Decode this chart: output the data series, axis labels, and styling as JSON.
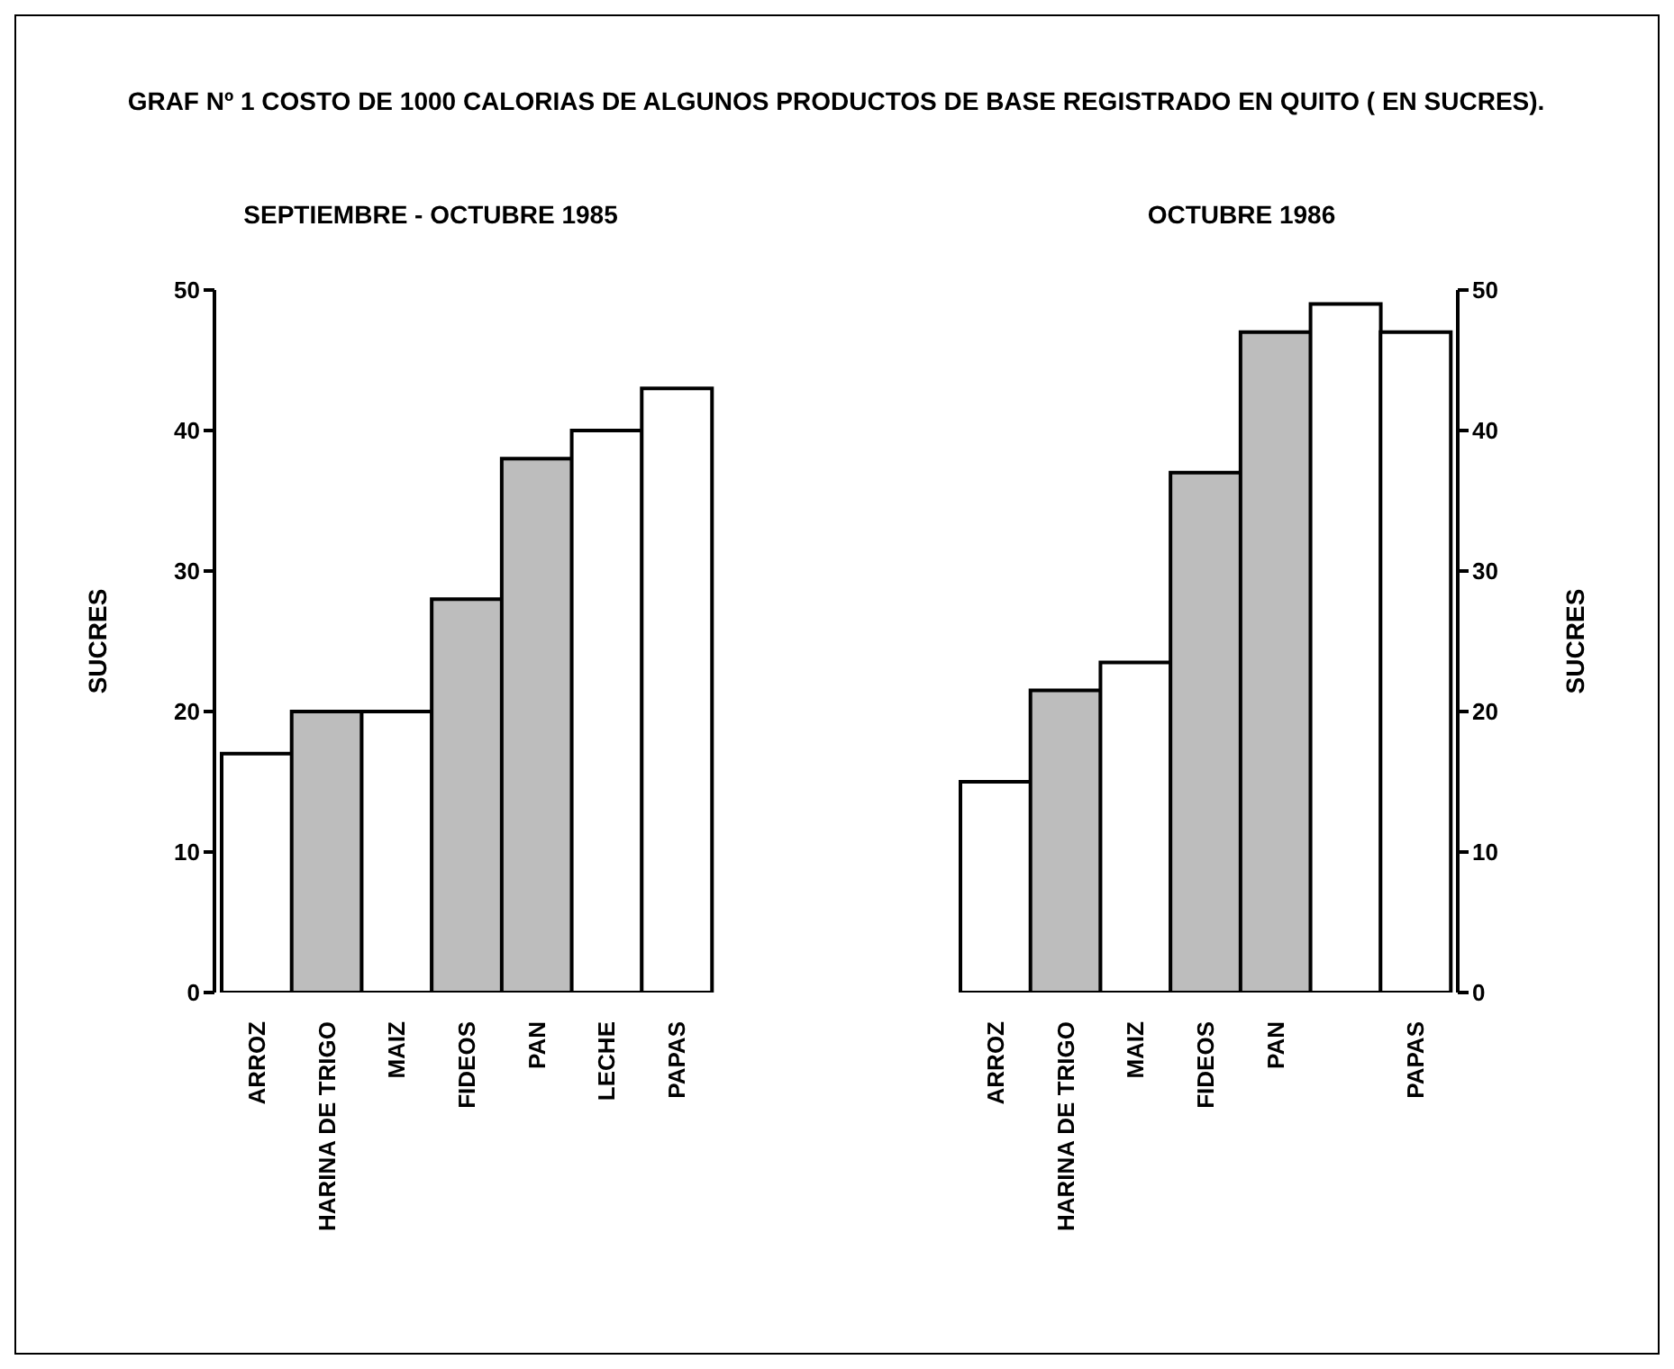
{
  "chart_data": [
    {
      "type": "bar",
      "title": "GRAF Nº 1 COSTO DE 1000 CALORIAS DE ALGUNOS PRODUCTOS DE BASE REGISTRADO EN QUITO ( EN SUCRES).",
      "subtitle": "SEPTIEMBRE - OCTUBRE 1985",
      "ylabel": "SUCRES",
      "categories": [
        "ARROZ",
        "HARINA DE TRIGO",
        "MAIZ",
        "FIDEOS",
        "PAN",
        "LECHE",
        "PAPAS"
      ],
      "values": [
        17,
        20,
        20,
        28,
        38,
        40,
        43
      ],
      "colors": [
        "#ffffff",
        "#bdbdbd",
        "#ffffff",
        "#bdbdbd",
        "#bdbdbd",
        "#ffffff",
        "#ffffff"
      ],
      "ylim": [
        0,
        50
      ],
      "yticks": [
        0,
        10,
        20,
        30,
        40,
        50
      ]
    },
    {
      "type": "bar",
      "subtitle": "OCTUBRE 1986",
      "y2label": "SUCRES",
      "categories": [
        "ARROZ",
        "HARINA DE TRIGO",
        "MAIZ",
        "FIDEOS",
        "PAN",
        null,
        "PAPAS"
      ],
      "series": [
        {
          "axis": "y2",
          "values": [
            15,
            21.5,
            23.5,
            37,
            47,
            49,
            47
          ]
        }
      ],
      "colors": [
        "#ffffff",
        "#bdbdbd",
        "#ffffff",
        "#bdbdbd",
        "#bdbdbd",
        "#ffffff",
        "#ffffff"
      ],
      "y2lim": [
        0,
        50
      ],
      "y2ticks": [
        0,
        10,
        20,
        30,
        40,
        50
      ]
    }
  ]
}
